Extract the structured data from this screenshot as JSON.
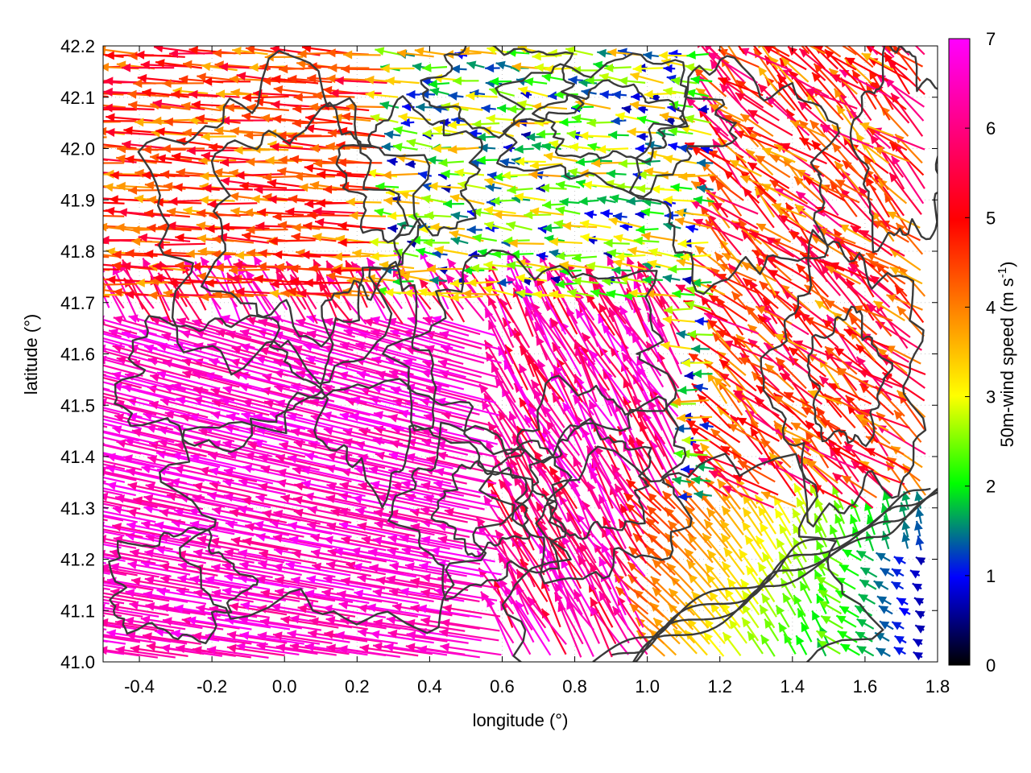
{
  "chart_data": {
    "type": "vector-field",
    "xlabel": "longitude (°)",
    "ylabel": "latitude (°)",
    "xlim": [
      -0.5,
      1.8
    ],
    "ylim": [
      41.0,
      42.2
    ],
    "x_ticks": [
      -0.4,
      -0.2,
      0.0,
      0.2,
      0.4,
      0.6,
      0.8,
      1.0,
      1.2,
      1.4,
      1.6,
      1.8
    ],
    "x_tick_labels": [
      "-0.4",
      "-0.2",
      "0.0",
      "0.2",
      "0.4",
      "0.6",
      "0.8",
      "1.0",
      "1.2",
      "1.4",
      "1.6",
      "1.8"
    ],
    "y_ticks": [
      41.0,
      41.1,
      41.2,
      41.3,
      41.4,
      41.5,
      41.6,
      41.7,
      41.8,
      41.9,
      42.0,
      42.1,
      42.2
    ],
    "y_tick_labels": [
      "41.0",
      "41.1",
      "41.2",
      "41.3",
      "41.4",
      "41.5",
      "41.6",
      "41.7",
      "41.8",
      "41.9",
      "42.0",
      "42.1",
      "42.2"
    ],
    "grid": true,
    "colorbar": {
      "label": "50m-wind speed (m s-1)",
      "label_main": "50m-wind speed (m s",
      "label_sup": "-1",
      "label_end": ")",
      "range": [
        0,
        7
      ],
      "ticks": [
        0,
        1,
        2,
        3,
        4,
        5,
        6,
        7
      ],
      "tick_labels": [
        "0",
        "1",
        "2",
        "3",
        "4",
        "5",
        "6",
        "7"
      ],
      "palette": [
        "#000000",
        "#0000ff",
        "#00ff00",
        "#ffff00",
        "#ff8000",
        "#ff0000",
        "#ff00ff"
      ]
    },
    "wind_regions": [
      {
        "region": "southwest",
        "lon": [
          -0.5,
          0.6
        ],
        "lat": [
          41.0,
          41.65
        ],
        "speed": [
          6.0,
          7.0
        ],
        "direction": "from east-southeast toward west"
      },
      {
        "region": "west",
        "lon": [
          -0.5,
          0.3
        ],
        "lat": [
          41.65,
          42.2
        ],
        "speed": [
          3.5,
          5.5
        ],
        "direction": "from east toward west"
      },
      {
        "region": "north-central",
        "lon": [
          0.3,
          1.2
        ],
        "lat": [
          41.7,
          42.2
        ],
        "speed": [
          0.5,
          3.5
        ],
        "direction": "from east toward west"
      },
      {
        "region": "central",
        "lon": [
          0.4,
          1.1
        ],
        "lat": [
          41.3,
          41.7
        ],
        "speed": [
          4.5,
          7.0
        ],
        "direction": "toward north-northwest"
      },
      {
        "region": "east",
        "lon": [
          1.1,
          1.8
        ],
        "lat": [
          41.3,
          42.2
        ],
        "speed": [
          3.5,
          6.0
        ],
        "direction": "toward northwest"
      },
      {
        "region": "southeast",
        "lon": [
          1.0,
          1.8
        ],
        "lat": [
          41.0,
          41.3
        ],
        "speed": [
          0.3,
          4.0
        ],
        "direction": "toward north"
      }
    ],
    "contours": "terrain elevation isolines (dark gray)"
  },
  "colors": {
    "contour": "#3a3a3a",
    "grid": "#c8c8c8",
    "frame": "#000000"
  }
}
